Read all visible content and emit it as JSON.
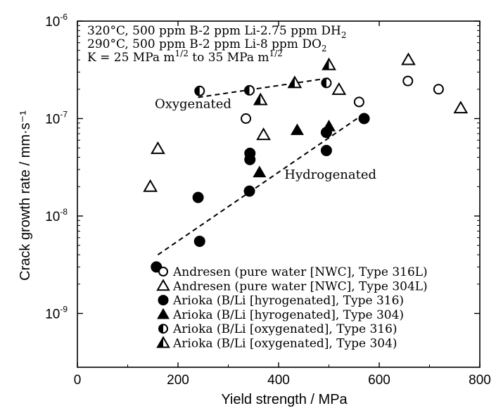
{
  "chart_data": {
    "type": "scatter",
    "xlabel": "Yield strength / MPa",
    "ylabel": "Crack growth rate / mm·s⁻¹",
    "xlim": [
      0,
      800
    ],
    "ylim": [
      1e-09,
      1e-06
    ],
    "y_scale": "log",
    "x_ticks": [
      0,
      200,
      400,
      600,
      800
    ],
    "y_ticks": [
      {
        "value": 1e-09,
        "mant": "10",
        "exp": "-9"
      },
      {
        "value": 1e-08,
        "mant": "10",
        "exp": "-8"
      },
      {
        "value": 1e-07,
        "mant": "10",
        "exp": "-7"
      },
      {
        "value": 1e-06,
        "mant": "10",
        "exp": "-6"
      }
    ],
    "conditions": [
      {
        "text": "320°C, 500 ppm B-2 ppm Li-2.75 ppm DH",
        "sub": "2",
        "sup": ""
      },
      {
        "text": "290°C, 500 ppm B-2 ppm Li-8 ppm DO",
        "sub": "2",
        "sup": ""
      },
      {
        "text": "K = 25 MPa m",
        "sup": "1/2",
        "text2": " to 35 MPa m",
        "sup2": "1/2"
      }
    ],
    "annotations": [
      {
        "text": "Oxygenated",
        "x": 230,
        "y": 1.28e-07
      },
      {
        "text": "Hydrogenated",
        "x": 503,
        "y": 2.42e-08
      }
    ],
    "trend_lines": [
      {
        "name": "oxygenated",
        "points": [
          [
            240,
            1.65e-07
          ],
          [
            500,
            2.6e-07
          ]
        ]
      },
      {
        "name": "hydrogenated",
        "points": [
          [
            160,
            4e-09
          ],
          [
            570,
            1.12e-07
          ]
        ]
      }
    ],
    "legend_position": "bottom-right",
    "series": [
      {
        "name": "Andresen (pure water [NWC], Type 316L)",
        "marker": "circle-open",
        "points": [
          [
            335,
            1e-07
          ],
          [
            560,
            1.48e-07
          ],
          [
            657,
            2.43e-07
          ],
          [
            718,
            2e-07
          ]
        ]
      },
      {
        "name": "Andresen (pure water [NWC], Type 304L)",
        "marker": "triangle-open",
        "points": [
          [
            145,
            2e-08
          ],
          [
            160,
            4.9e-08
          ],
          [
            370,
            6.8e-08
          ],
          [
            520,
            1.98e-07
          ],
          [
            658,
            4e-07
          ],
          [
            762,
            1.28e-07
          ]
        ]
      },
      {
        "name": "Arioka (B/Li [hyrogenated], Type 316)",
        "marker": "circle-filled",
        "points": [
          [
            157,
            3e-09
          ],
          [
            243,
            5.5e-09
          ],
          [
            240,
            1.55e-08
          ],
          [
            342,
            1.8e-08
          ],
          [
            343,
            3.8e-08
          ],
          [
            343,
            4.4e-08
          ],
          [
            495,
            4.7e-08
          ],
          [
            495,
            7.2e-08
          ],
          [
            570,
            1e-07
          ]
        ]
      },
      {
        "name": "Arioka  (B/Li [hyrogenated], Type 304)",
        "marker": "triangle-filled",
        "points": [
          [
            362,
            2.8e-08
          ],
          [
            437,
            7.6e-08
          ],
          [
            500,
            8.3e-08
          ]
        ]
      },
      {
        "name": "Arioka  (B/Li [oxygenated], Type 316)",
        "marker": "circle-half",
        "points": [
          [
            243,
            1.92e-07
          ],
          [
            342,
            1.95e-07
          ],
          [
            495,
            2.32e-07
          ]
        ]
      },
      {
        "name": "Arioka  (B/Li [oxygenated], Type 304)",
        "marker": "triangle-half",
        "points": [
          [
            364,
            1.55e-07
          ],
          [
            432,
            2.32e-07
          ],
          [
            500,
            3.55e-07
          ]
        ]
      }
    ]
  }
}
